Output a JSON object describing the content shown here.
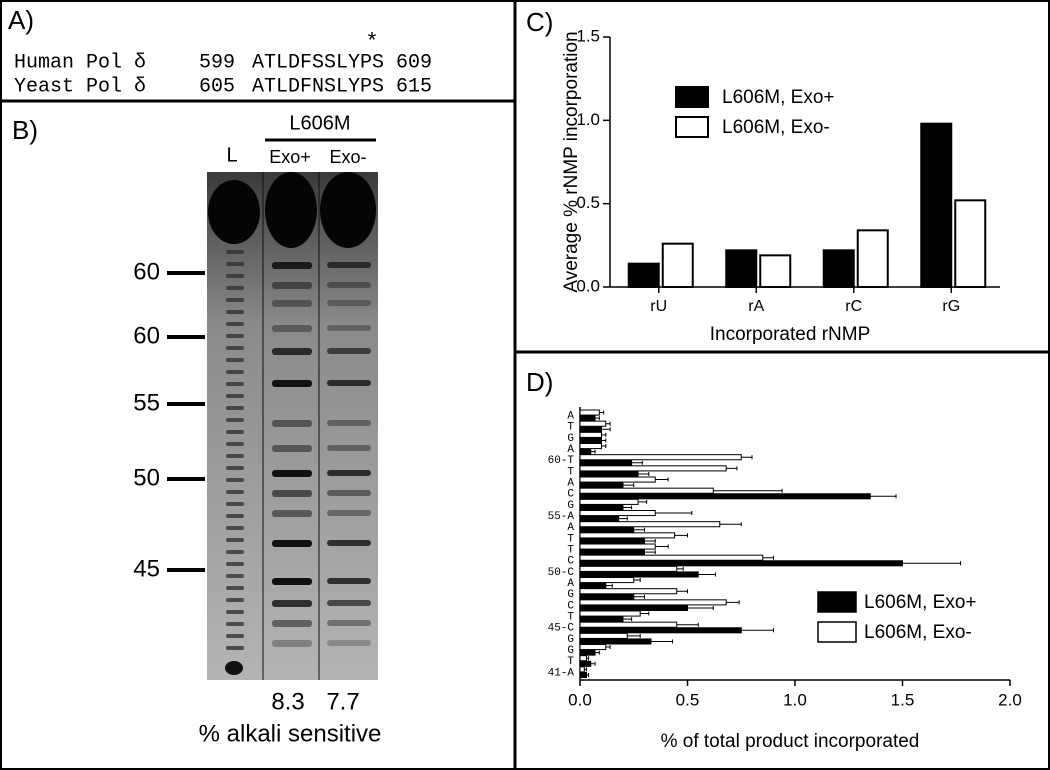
{
  "panel_a": {
    "label": "A)",
    "marker": "*",
    "rows": [
      {
        "name": "Human Pol δ",
        "start": "599",
        "sequence": "ATLDFSSLYPS",
        "end": "609"
      },
      {
        "name": "Yeast Pol δ",
        "start": "605",
        "sequence": "ATLDFNSLYPS",
        "end": "615"
      }
    ]
  },
  "panel_b": {
    "label": "B)",
    "ladder": "L",
    "mutant": "L606M",
    "lanes": [
      "Exo+",
      "Exo-"
    ],
    "size_markers": [
      "60",
      "60",
      "55",
      "50",
      "45"
    ],
    "percent": [
      "8.3",
      "7.7"
    ],
    "caption": "% alkali sensitive"
  },
  "chart_data": [
    {
      "type": "bar",
      "title": "C)",
      "xlabel": "Incorporated rNMP",
      "ylabel": "Average % rNMP incorporation",
      "categories": [
        "rU",
        "rA",
        "rC",
        "rG"
      ],
      "series": [
        {
          "name": "L606M, Exo+",
          "color": "#000000",
          "values": [
            0.14,
            0.22,
            0.22,
            0.98
          ]
        },
        {
          "name": "L606M, Exo-",
          "color": "#ffffff",
          "values": [
            0.26,
            0.19,
            0.34,
            0.52
          ]
        }
      ],
      "ylim": [
        0,
        1.5
      ],
      "yticks": [
        {
          "value": 0,
          "label": "0.0"
        },
        0.5,
        {
          "value": 1,
          "label": "1.0"
        },
        1.5
      ],
      "legend": "upper-left"
    },
    {
      "type": "hbar",
      "title": "D)",
      "xlabel": "% of total product incorporated",
      "categories": [
        "A",
        "T",
        "G",
        "A",
        "60-T",
        "T",
        "A",
        "C",
        "G",
        "55-A",
        "A",
        "T",
        "T",
        "C",
        "50-C",
        "A",
        "G",
        "C",
        "T",
        "45-C",
        "G",
        "G",
        "T",
        "41-A"
      ],
      "series": [
        {
          "name": "L606M, Exo+",
          "color": "#000000",
          "values": [
            0.07,
            0.1,
            0.1,
            0.05,
            0.24,
            0.27,
            0.2,
            1.35,
            0.2,
            0.18,
            0.25,
            0.3,
            0.3,
            1.5,
            0.55,
            0.12,
            0.25,
            0.5,
            0.2,
            0.75,
            0.33,
            0.07,
            0.05,
            0.03
          ],
          "errors": [
            0.02,
            0.04,
            0.02,
            0.02,
            0.05,
            0.05,
            0.05,
            0.12,
            0.04,
            0.04,
            0.05,
            0.05,
            0.05,
            0.27,
            0.08,
            0.03,
            0.05,
            0.12,
            0.04,
            0.15,
            0.1,
            0.02,
            0.02,
            0.01
          ]
        },
        {
          "name": "L606M, Exo-",
          "color": "#ffffff",
          "values": [
            0.09,
            0.12,
            0.1,
            0.1,
            0.75,
            0.68,
            0.35,
            0.62,
            0.27,
            0.35,
            0.65,
            0.44,
            0.35,
            0.85,
            0.45,
            0.25,
            0.45,
            0.68,
            0.28,
            0.45,
            0.22,
            0.12,
            0.03,
            0.02
          ],
          "errors": [
            0.02,
            0.02,
            0.02,
            0.02,
            0.05,
            0.05,
            0.06,
            0.32,
            0.04,
            0.17,
            0.1,
            0.06,
            0.06,
            0.05,
            0.03,
            0.03,
            0.05,
            0.06,
            0.04,
            0.1,
            0.06,
            0.02,
            0.01,
            0.01
          ]
        }
      ],
      "xlim": [
        0,
        2
      ],
      "xticks": [
        {
          "value": 0,
          "label": "0.0"
        },
        0.5,
        {
          "value": 1,
          "label": "1.0"
        },
        1.5,
        {
          "value": 2,
          "label": "2.0"
        }
      ],
      "legend": "lower-right"
    }
  ]
}
